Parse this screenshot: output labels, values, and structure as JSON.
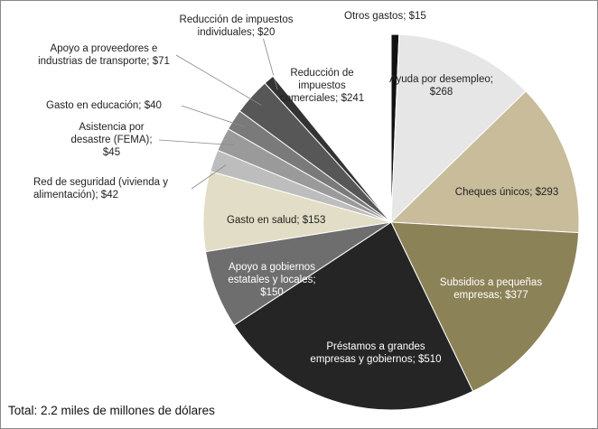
{
  "chart_data": {
    "type": "pie",
    "categories": [
      "Otros gastos;",
      "Ayuda por desempleo;",
      "Cheques únicos;",
      "Subsidios a pequeñas empresas;",
      "Préstamos a grandes empresas y gobiernos;",
      "Apoyo a gobiernos estatales y locales;",
      "Gasto en salud;",
      "Red de seguridad (vivienda y alimentación);",
      "Asistencia por desastre (FEMA);",
      "Gasto en educación;",
      "Apoyo a proveedores e industrias de transporte;",
      "Reducción de impuestos individuales;",
      "Reducción de impuestos comerciales;"
    ],
    "values": [
      15,
      268,
      293,
      377,
      510,
      150,
      153,
      42,
      45,
      40,
      71,
      20,
      241
    ],
    "value_labels": [
      "$15",
      "$268",
      "$293",
      "$377",
      "$510",
      "$150",
      "$153",
      "$42",
      "$45",
      "$40",
      "$71",
      "$20",
      "$241"
    ],
    "colors": [
      "#111111",
      "#e6e6e6",
      "#c8bc9a",
      "#8c8257",
      "#252525",
      "#6e6e6e",
      "#e2ddc6",
      "#bdbdbd",
      "#9a9a9a",
      "#7a7a7a",
      "#575757",
      "#333333",
      "#ffffff"
    ],
    "note": "Total: 2.2 miles de millones de dólares"
  }
}
